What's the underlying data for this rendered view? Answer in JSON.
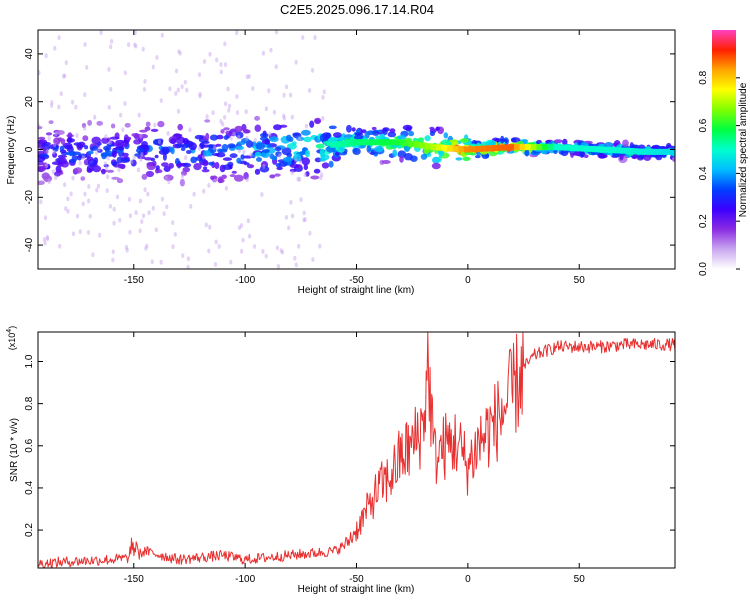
{
  "title": "C2E5.2025.096.17.14.R04",
  "chart_data": [
    {
      "type": "heatmap",
      "xlabel": "Height of straight line (km)",
      "ylabel": "Frequency (Hz)",
      "xlim": [
        -193,
        93
      ],
      "ylim": [
        -50,
        50
      ],
      "xticks": [
        -150,
        -100,
        -50,
        0,
        50
      ],
      "yticks": [
        -40,
        -20,
        0,
        20,
        40
      ],
      "colorbar": {
        "label": "Normalized spectral amplitude",
        "range": [
          0,
          1
        ],
        "ticks": [
          "0.0",
          "0.2",
          "0.4",
          "0.6",
          "0.8"
        ],
        "colors": [
          "#ffffff",
          "#c9a6f0",
          "#8a2be2",
          "#3b00ff",
          "#0040ff",
          "#00bfff",
          "#00ffcc",
          "#00ff40",
          "#80ff00",
          "#ffff00",
          "#ffa500",
          "#ff2000",
          "#ff40c0"
        ]
      },
      "ridge": {
        "x": [
          -190,
          -170,
          -150,
          -130,
          -110,
          -90,
          -70,
          -50,
          -30,
          -15,
          0,
          20,
          40,
          60,
          80,
          93
        ],
        "center_hz": [
          -2,
          -2,
          -1,
          -1,
          -1,
          0,
          1,
          3,
          3,
          1,
          0,
          1,
          1,
          0,
          -1,
          -1
        ],
        "amplitude": [
          0.3,
          0.32,
          0.33,
          0.35,
          0.38,
          0.42,
          0.48,
          0.55,
          0.6,
          0.7,
          0.85,
          0.88,
          0.5,
          0.5,
          0.48,
          0.45
        ]
      }
    },
    {
      "type": "line",
      "xlabel": "Height of straight line (km)",
      "ylabel": "SNR (10 * v/v)",
      "yscale_note": "(x10",
      "yscale_exp": "4",
      "xlim": [
        -193,
        93
      ],
      "ylim": [
        0.02,
        1.14
      ],
      "xticks": [
        -150,
        -100,
        -50,
        0,
        50
      ],
      "yticks": [
        0.2,
        0.4,
        0.6,
        0.8,
        1.0
      ],
      "color": "#e83030",
      "series": [
        {
          "x": [
            -193,
            -180,
            -160,
            -150,
            -145,
            -130,
            -120,
            -110,
            -100,
            -80,
            -70,
            -60,
            -55,
            -50,
            -45,
            -40,
            -35,
            -30,
            -25,
            -20,
            -18,
            -15,
            -10,
            -5,
            0,
            5,
            10,
            15,
            20,
            25,
            30,
            40,
            50,
            60,
            70,
            80,
            93
          ],
          "y": [
            0.04,
            0.05,
            0.06,
            0.07,
            0.1,
            0.06,
            0.07,
            0.08,
            0.06,
            0.08,
            0.09,
            0.1,
            0.13,
            0.2,
            0.3,
            0.4,
            0.45,
            0.55,
            0.6,
            0.7,
            1.0,
            0.55,
            0.6,
            0.62,
            0.5,
            0.62,
            0.68,
            0.75,
            0.85,
            0.97,
            1.03,
            1.07,
            1.07,
            1.07,
            1.08,
            1.08,
            1.08
          ]
        }
      ]
    }
  ]
}
